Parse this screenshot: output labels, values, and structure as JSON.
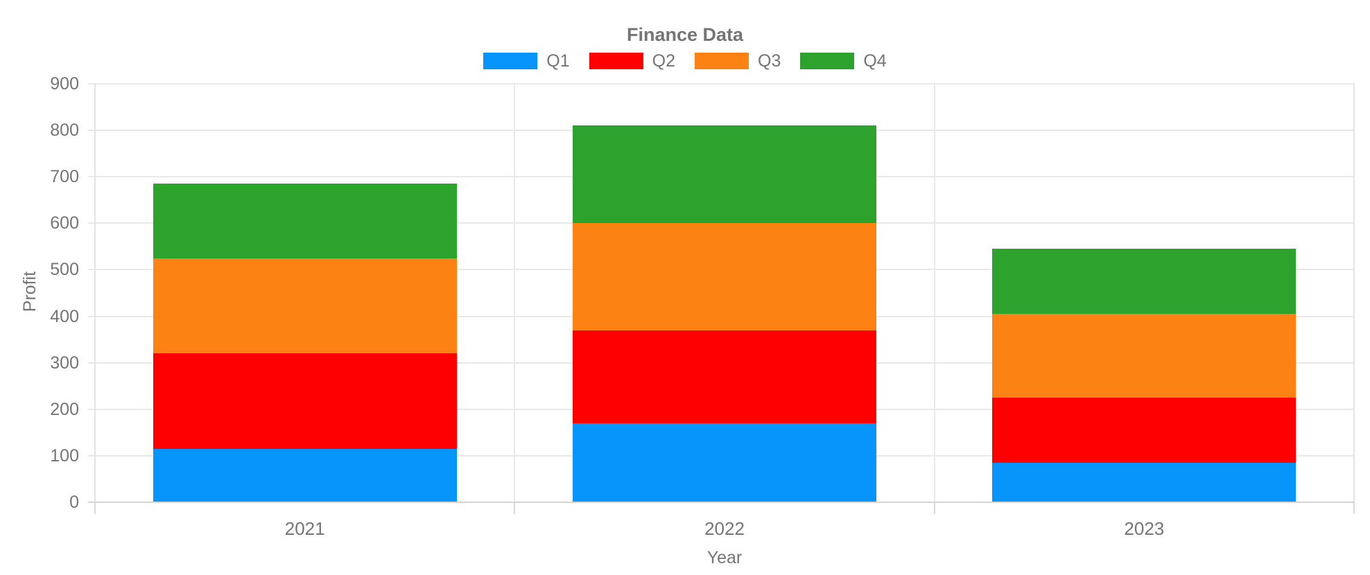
{
  "chart_data": {
    "type": "bar",
    "stacked": true,
    "title": "Finance Data",
    "xlabel": "Year",
    "ylabel": "Profit",
    "categories": [
      "2021",
      "2022",
      "2023"
    ],
    "series": [
      {
        "name": "Q1",
        "color": "#0795fb",
        "values": [
          115,
          170,
          85
        ]
      },
      {
        "name": "Q2",
        "color": "#fe0000",
        "values": [
          205,
          200,
          140
        ]
      },
      {
        "name": "Q3",
        "color": "#fd8214",
        "values": [
          205,
          230,
          180
        ]
      },
      {
        "name": "Q4",
        "color": "#2da22d",
        "values": [
          160,
          210,
          140
        ]
      }
    ],
    "stack_totals": [
      685,
      810,
      545
    ],
    "ylim": [
      0,
      900
    ],
    "y_ticks": [
      0,
      100,
      200,
      300,
      400,
      500,
      600,
      700,
      800,
      900
    ],
    "grid": true,
    "legend_position": "top",
    "text_color": "#757575",
    "grid_color": "#e9e9e9"
  }
}
